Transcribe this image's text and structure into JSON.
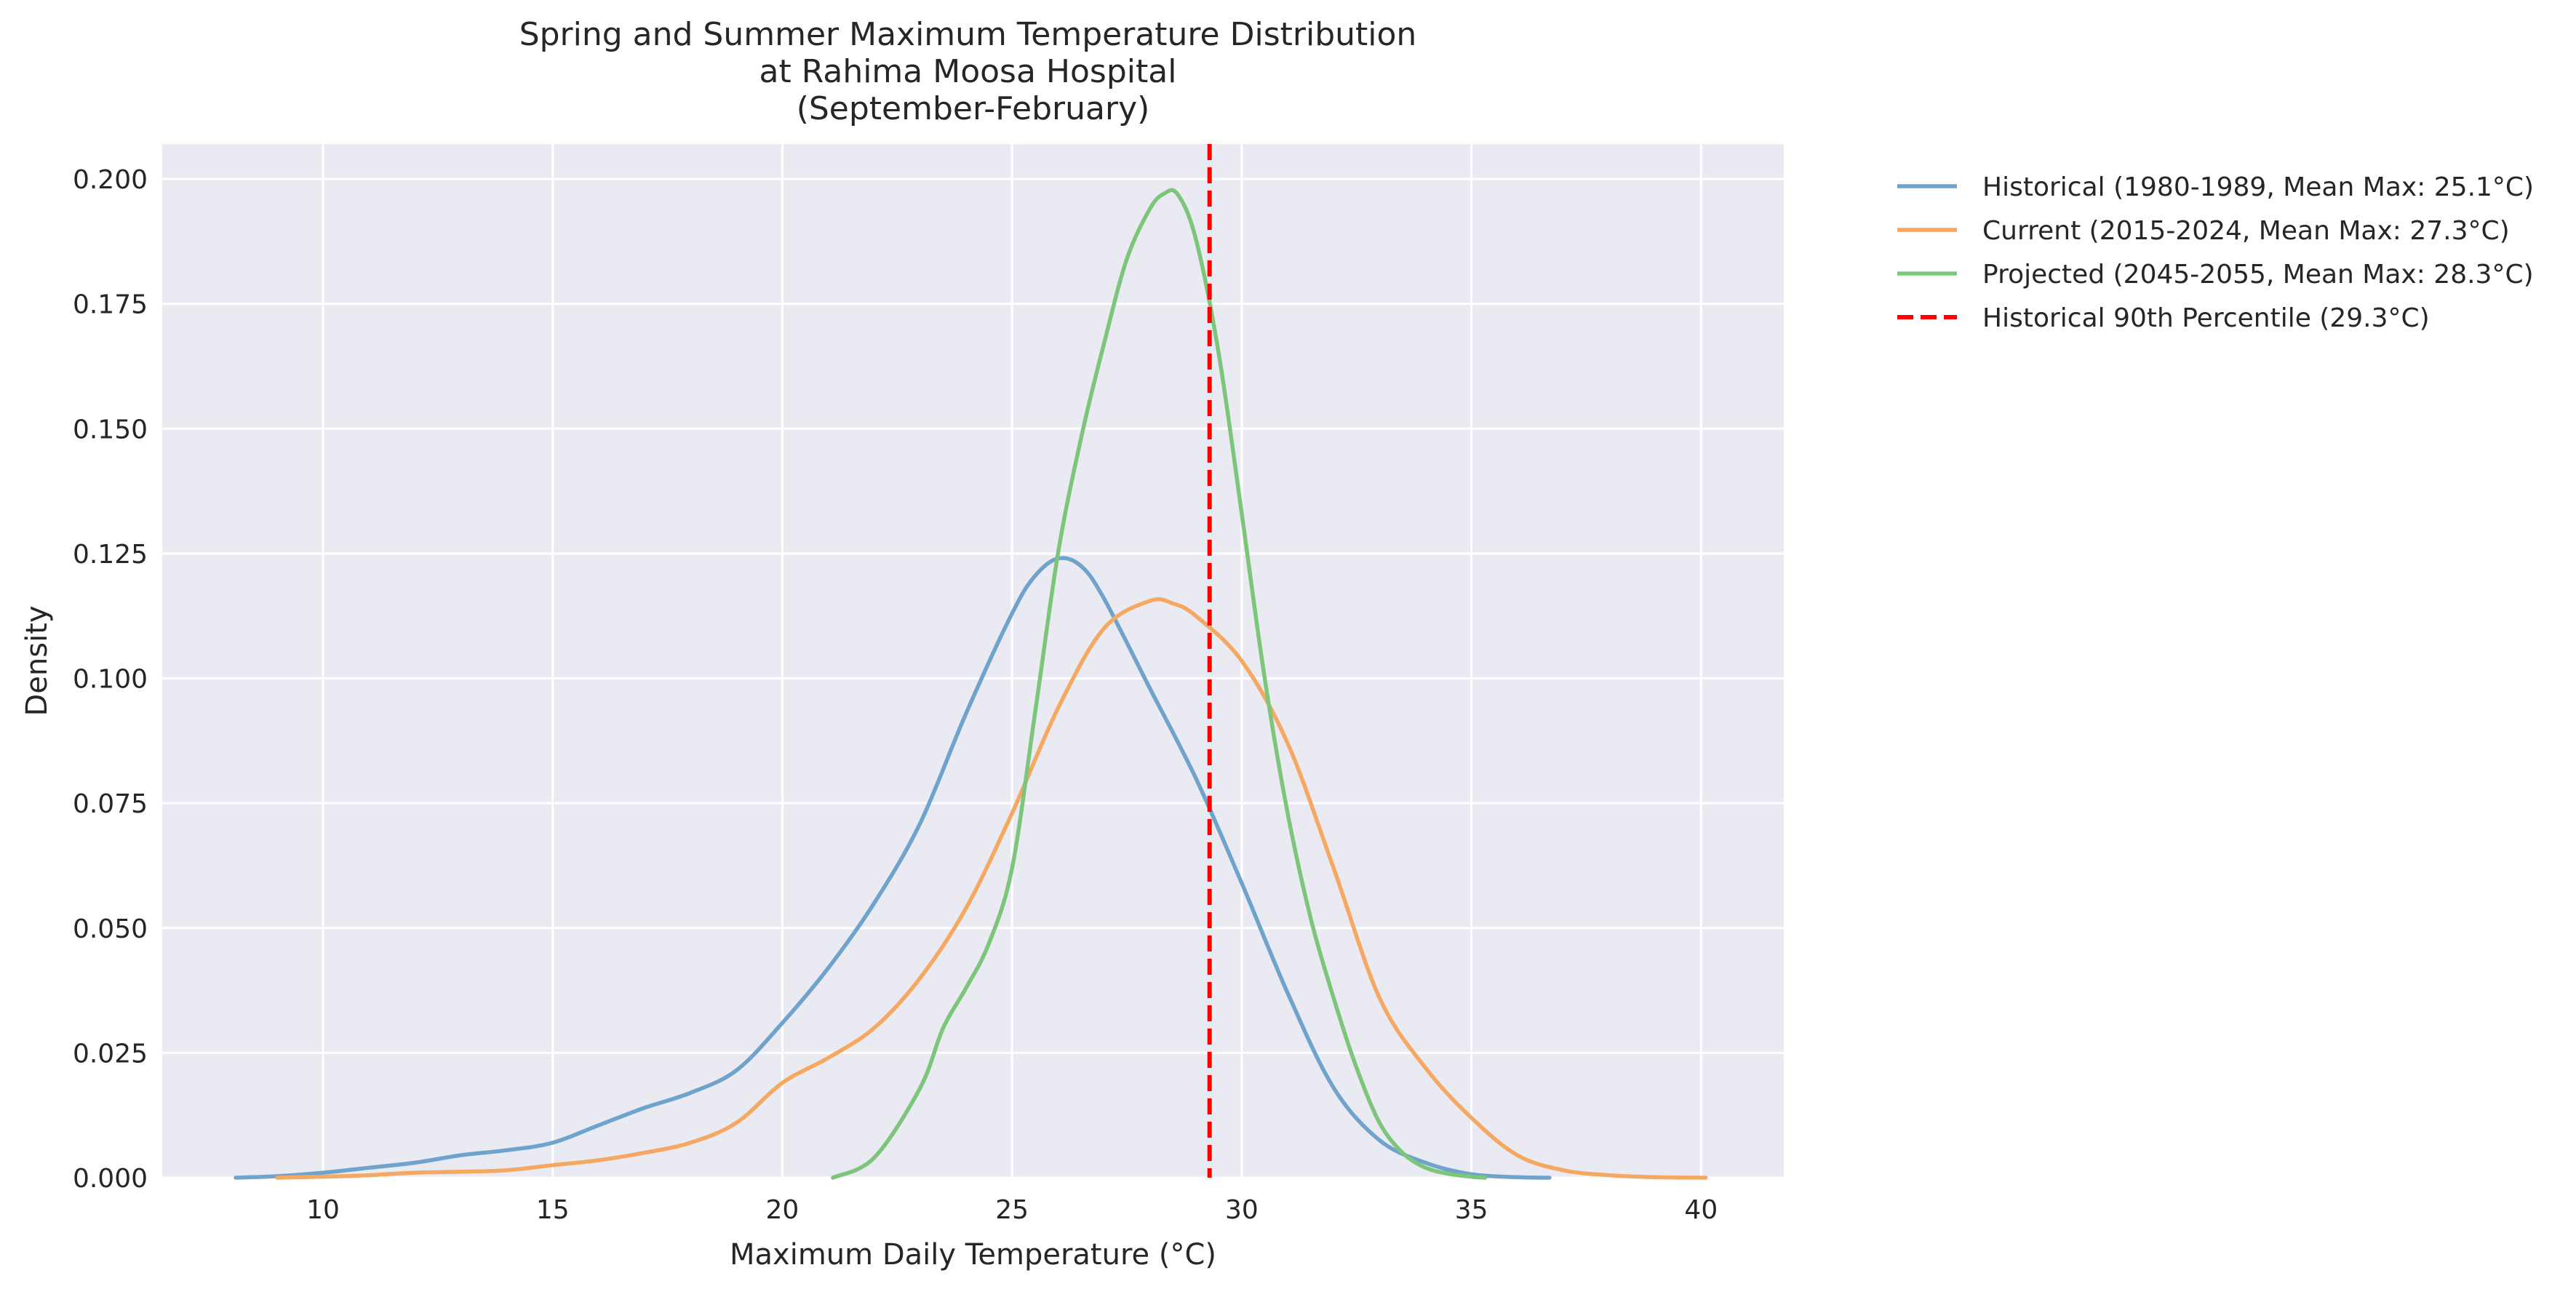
{
  "chart_data": {
    "type": "line",
    "title_lines": [
      "Spring and Summer Maximum Temperature Distribution",
      "at Rahima Moosa Hospital",
      "(September-February)"
    ],
    "xlabel": "Maximum Daily Temperature (°C)",
    "ylabel": "Density",
    "xlim": [
      6.5,
      41.8
    ],
    "ylim": [
      0,
      0.207
    ],
    "x_ticks": [
      10,
      15,
      20,
      25,
      30,
      35,
      40
    ],
    "x_tick_labels": [
      "10",
      "15",
      "20",
      "25",
      "30",
      "35",
      "40"
    ],
    "y_ticks": [
      0,
      0.025,
      0.05,
      0.075,
      0.1,
      0.125,
      0.15,
      0.175,
      0.2
    ],
    "y_tick_labels": [
      "0.000",
      "0.025",
      "0.050",
      "0.075",
      "0.100",
      "0.125",
      "0.150",
      "0.175",
      "0.200"
    ],
    "grid": true,
    "background": "#eaeaf2",
    "legend_position": "outside-top-right",
    "series": [
      {
        "name": "Historical (1980-1989, Mean Max: 25.1°C)",
        "color": "#6fa3cc",
        "x": [
          8.1,
          9,
          10,
          11,
          12,
          13,
          14,
          15,
          16,
          17,
          18,
          19,
          20,
          21,
          22,
          23,
          24,
          25,
          25.5,
          26,
          26.5,
          27,
          28,
          29,
          30,
          31,
          32,
          33,
          34,
          35,
          36,
          36.7
        ],
        "y": [
          0.0,
          0.0003,
          0.001,
          0.002,
          0.003,
          0.0045,
          0.0055,
          0.007,
          0.0105,
          0.014,
          0.017,
          0.0215,
          0.031,
          0.042,
          0.055,
          0.071,
          0.093,
          0.113,
          0.1205,
          0.124,
          0.1225,
          0.116,
          0.098,
          0.08,
          0.059,
          0.037,
          0.018,
          0.0075,
          0.003,
          0.0007,
          0.0001,
          0.0
        ]
      },
      {
        "name": "Current (2015-2024, Mean Max: 27.3°C)",
        "color": "#f5a862",
        "x": [
          9,
          10,
          11,
          12,
          13,
          14,
          15,
          16,
          17,
          18,
          19,
          20,
          21,
          22,
          23,
          24,
          25,
          26,
          27,
          28,
          28.5,
          29,
          30,
          31,
          32,
          33,
          34,
          35,
          36,
          37,
          38,
          39,
          40.1
        ],
        "y": [
          0.0,
          0.0002,
          0.0005,
          0.001,
          0.0012,
          0.0015,
          0.0025,
          0.0035,
          0.005,
          0.007,
          0.011,
          0.019,
          0.024,
          0.03,
          0.04,
          0.054,
          0.073,
          0.094,
          0.11,
          0.1155,
          0.115,
          0.1125,
          0.1035,
          0.087,
          0.062,
          0.036,
          0.022,
          0.012,
          0.0045,
          0.0015,
          0.0005,
          0.0001,
          0.0
        ]
      },
      {
        "name": "Projected (2045-2055, Mean Max: 28.3°C)",
        "color": "#7cc57a",
        "x": [
          21.1,
          22,
          23,
          23.5,
          24,
          24.5,
          25,
          25.5,
          26,
          26.5,
          27,
          27.5,
          28,
          28.3,
          28.6,
          29,
          29.5,
          30,
          30.5,
          31,
          31.5,
          32,
          32.5,
          33,
          33.5,
          34,
          34.5,
          35,
          35.3
        ],
        "y": [
          0.0,
          0.004,
          0.018,
          0.03,
          0.038,
          0.047,
          0.062,
          0.093,
          0.125,
          0.148,
          0.167,
          0.184,
          0.194,
          0.197,
          0.197,
          0.188,
          0.165,
          0.133,
          0.1,
          0.073,
          0.052,
          0.036,
          0.022,
          0.011,
          0.005,
          0.002,
          0.0008,
          0.0002,
          0.0
        ]
      }
    ],
    "reference_line": {
      "name": "Historical 90th Percentile (29.3°C)",
      "x": 29.3,
      "color": "#ff0000",
      "style": "dashed"
    },
    "grid_color": "#ffffff"
  }
}
